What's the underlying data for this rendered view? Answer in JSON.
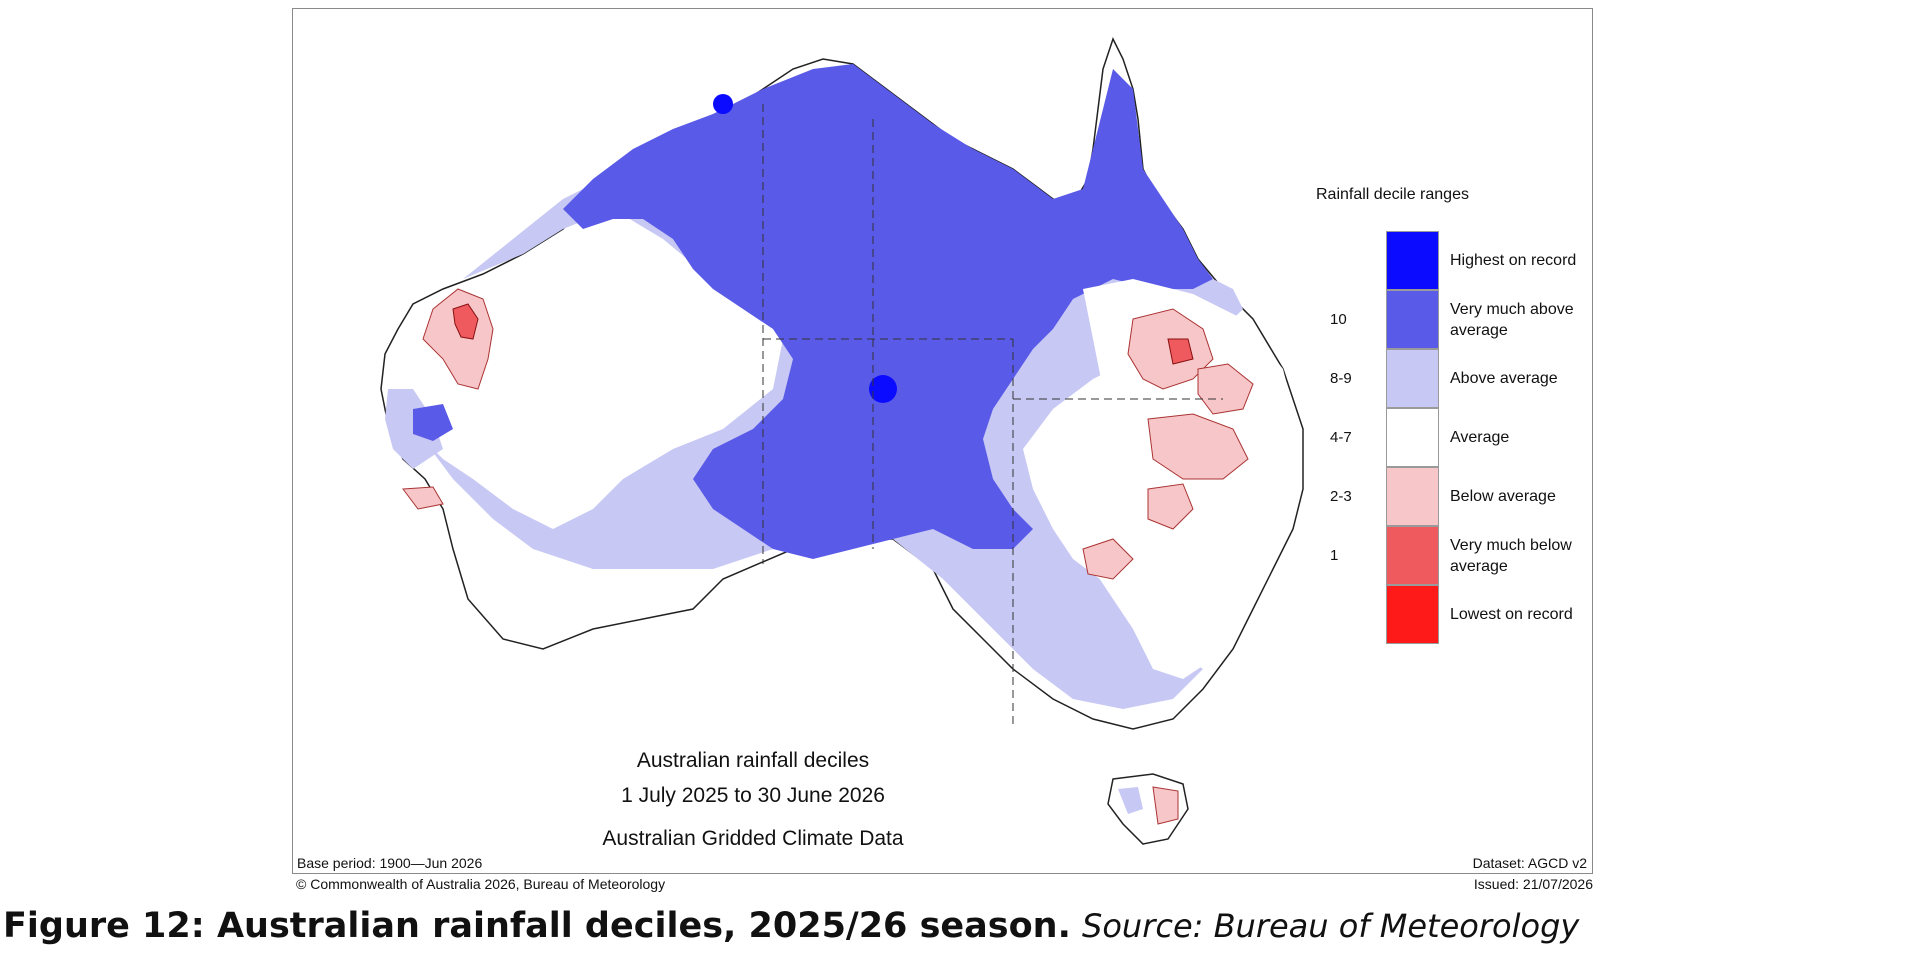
{
  "map": {
    "title_lines": [
      "Australian rainfall deciles",
      "1 July 2025 to 30 June 2026",
      "Australian Gridded Climate Data"
    ],
    "base_period": "Base period: 1900—Jun 2026",
    "dataset": "Dataset: AGCD v2",
    "copyright": "© Commonwealth of Australia 2026, Bureau of Meteorology",
    "issued": "Issued: 21/07/2026"
  },
  "legend": {
    "title": "Rainfall decile ranges",
    "entries": [
      {
        "range": "",
        "label": "Highest on record",
        "color": "#0b0bff"
      },
      {
        "range": "10",
        "label": "Very much above average",
        "color": "#5a5ae8"
      },
      {
        "range": "8-9",
        "label": "Above average",
        "color": "#c7c8f4"
      },
      {
        "range": "4-7",
        "label": "Average",
        "color": "#ffffff"
      },
      {
        "range": "2-3",
        "label": "Below average",
        "color": "#f7c6c8"
      },
      {
        "range": "1",
        "label": "Very much below average",
        "color": "#ee5a5e"
      },
      {
        "range": "",
        "label": "Lowest on record",
        "color": "#ff1a1a"
      }
    ]
  },
  "caption": {
    "bold": "Figure 12: Australian rainfall deciles, 2025/26 season.",
    "source": "Source: Bureau of Meteorology"
  }
}
